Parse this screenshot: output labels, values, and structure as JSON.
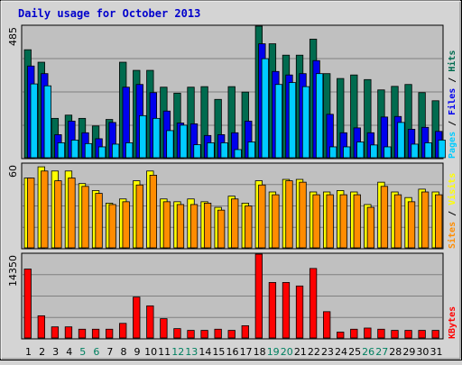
{
  "chart_data": {
    "type": "bar",
    "title": "Daily usage for October 2013",
    "colors": {
      "background": "#d4d4d4",
      "plot": "#c0c0c0",
      "grid": "#808080",
      "title": "#0000cc",
      "hits": "#006b4f",
      "files": "#0000ee",
      "pages": "#00ccff",
      "visits": "#ffff00",
      "sites": "#ff8c00",
      "kbytes": "#ff0000",
      "weekend_label": "#008060"
    },
    "categories": [
      "1",
      "2",
      "3",
      "4",
      "5",
      "6",
      "7",
      "8",
      "9",
      "10",
      "11",
      "12",
      "13",
      "14",
      "15",
      "16",
      "17",
      "18",
      "19",
      "20",
      "21",
      "22",
      "23",
      "24",
      "25",
      "26",
      "27",
      "28",
      "29",
      "30",
      "31"
    ],
    "weekend_days": [
      "5",
      "6",
      "12",
      "13",
      "19",
      "20",
      "26",
      "27"
    ],
    "panels": [
      {
        "name": "hits_files_pages",
        "ymax_label": "485",
        "ymax": 485,
        "grid": true,
        "legend": [
          {
            "text": "Pages",
            "color_key": "pages"
          },
          {
            "text": "Files",
            "color_key": "files"
          },
          {
            "text": "Hits",
            "color_key": "hits"
          }
        ],
        "series": [
          {
            "name": "Hits",
            "color_key": "hits",
            "values": [
              398,
              352,
              145,
              157,
              145,
              117,
              141,
              352,
              322,
              322,
              260,
              238,
              260,
              262,
              215,
              262,
              242,
              485,
              420,
              378,
              378,
              437,
              310,
              292,
              305,
              288,
              250,
              263,
              270,
              240,
              210
            ]
          },
          {
            "name": "Files",
            "color_key": "files",
            "values": [
              338,
              310,
              85,
              135,
              92,
              70,
              130,
              260,
              270,
              240,
              172,
              128,
              125,
              82,
              85,
              92,
              135,
              420,
              318,
              305,
              310,
              358,
              160,
              92,
              110,
              92,
              150,
              152,
              105,
              112,
              97
            ]
          },
          {
            "name": "Pages",
            "color_key": "pages",
            "values": [
              272,
              265,
              55,
              65,
              52,
              40,
              50,
              55,
              155,
              145,
              100,
              120,
              48,
              55,
              55,
              30,
              58,
              365,
              270,
              277,
              262,
              310,
              40,
              40,
              58,
              47,
              40,
              130,
              50,
              55,
              65
            ]
          }
        ]
      },
      {
        "name": "visits_sites",
        "ymax_label": "60",
        "ymax": 60,
        "grid": true,
        "legend": [
          {
            "text": "Sites",
            "color_key": "sites"
          },
          {
            "text": "Visits",
            "color_key": "visits"
          }
        ],
        "series": [
          {
            "name": "Visits",
            "color_key": "visits",
            "values": [
              50,
              58,
              55,
              55,
              46,
              41,
              32,
              35,
              48,
              55,
              35,
              33,
              35,
              33,
              29,
              37,
              32,
              48,
              40,
              49,
              49,
              40,
              40,
              41,
              40,
              31,
              47,
              40,
              36,
              42,
              40
            ]
          },
          {
            "name": "Sites",
            "color_key": "sites",
            "values": [
              50,
              55,
              48,
              50,
              44,
              39,
              31,
              33,
              45,
              52,
              33,
              31,
              31,
              32,
              27,
              35,
              30,
              45,
              38,
              48,
              47,
              38,
              38,
              38,
              38,
              29,
              44,
              38,
              33,
              40,
              38
            ]
          }
        ]
      },
      {
        "name": "kbytes",
        "ymax_label": "14350",
        "ymax": 14350,
        "grid": true,
        "legend": [
          {
            "text": "KBytes",
            "color_key": "kbytes"
          }
        ],
        "series": [
          {
            "name": "KBytes",
            "color_key": "kbytes",
            "values": [
              11800,
              3800,
              1900,
              1900,
              1500,
              1500,
              1500,
              2500,
              7000,
              5500,
              3300,
              1600,
              1300,
              1300,
              1500,
              1300,
              2100,
              14350,
              9500,
              9500,
              8900,
              11900,
              4500,
              1000,
              1500,
              1700,
              1500,
              1300,
              1300,
              1300,
              1300
            ]
          }
        ]
      }
    ]
  }
}
